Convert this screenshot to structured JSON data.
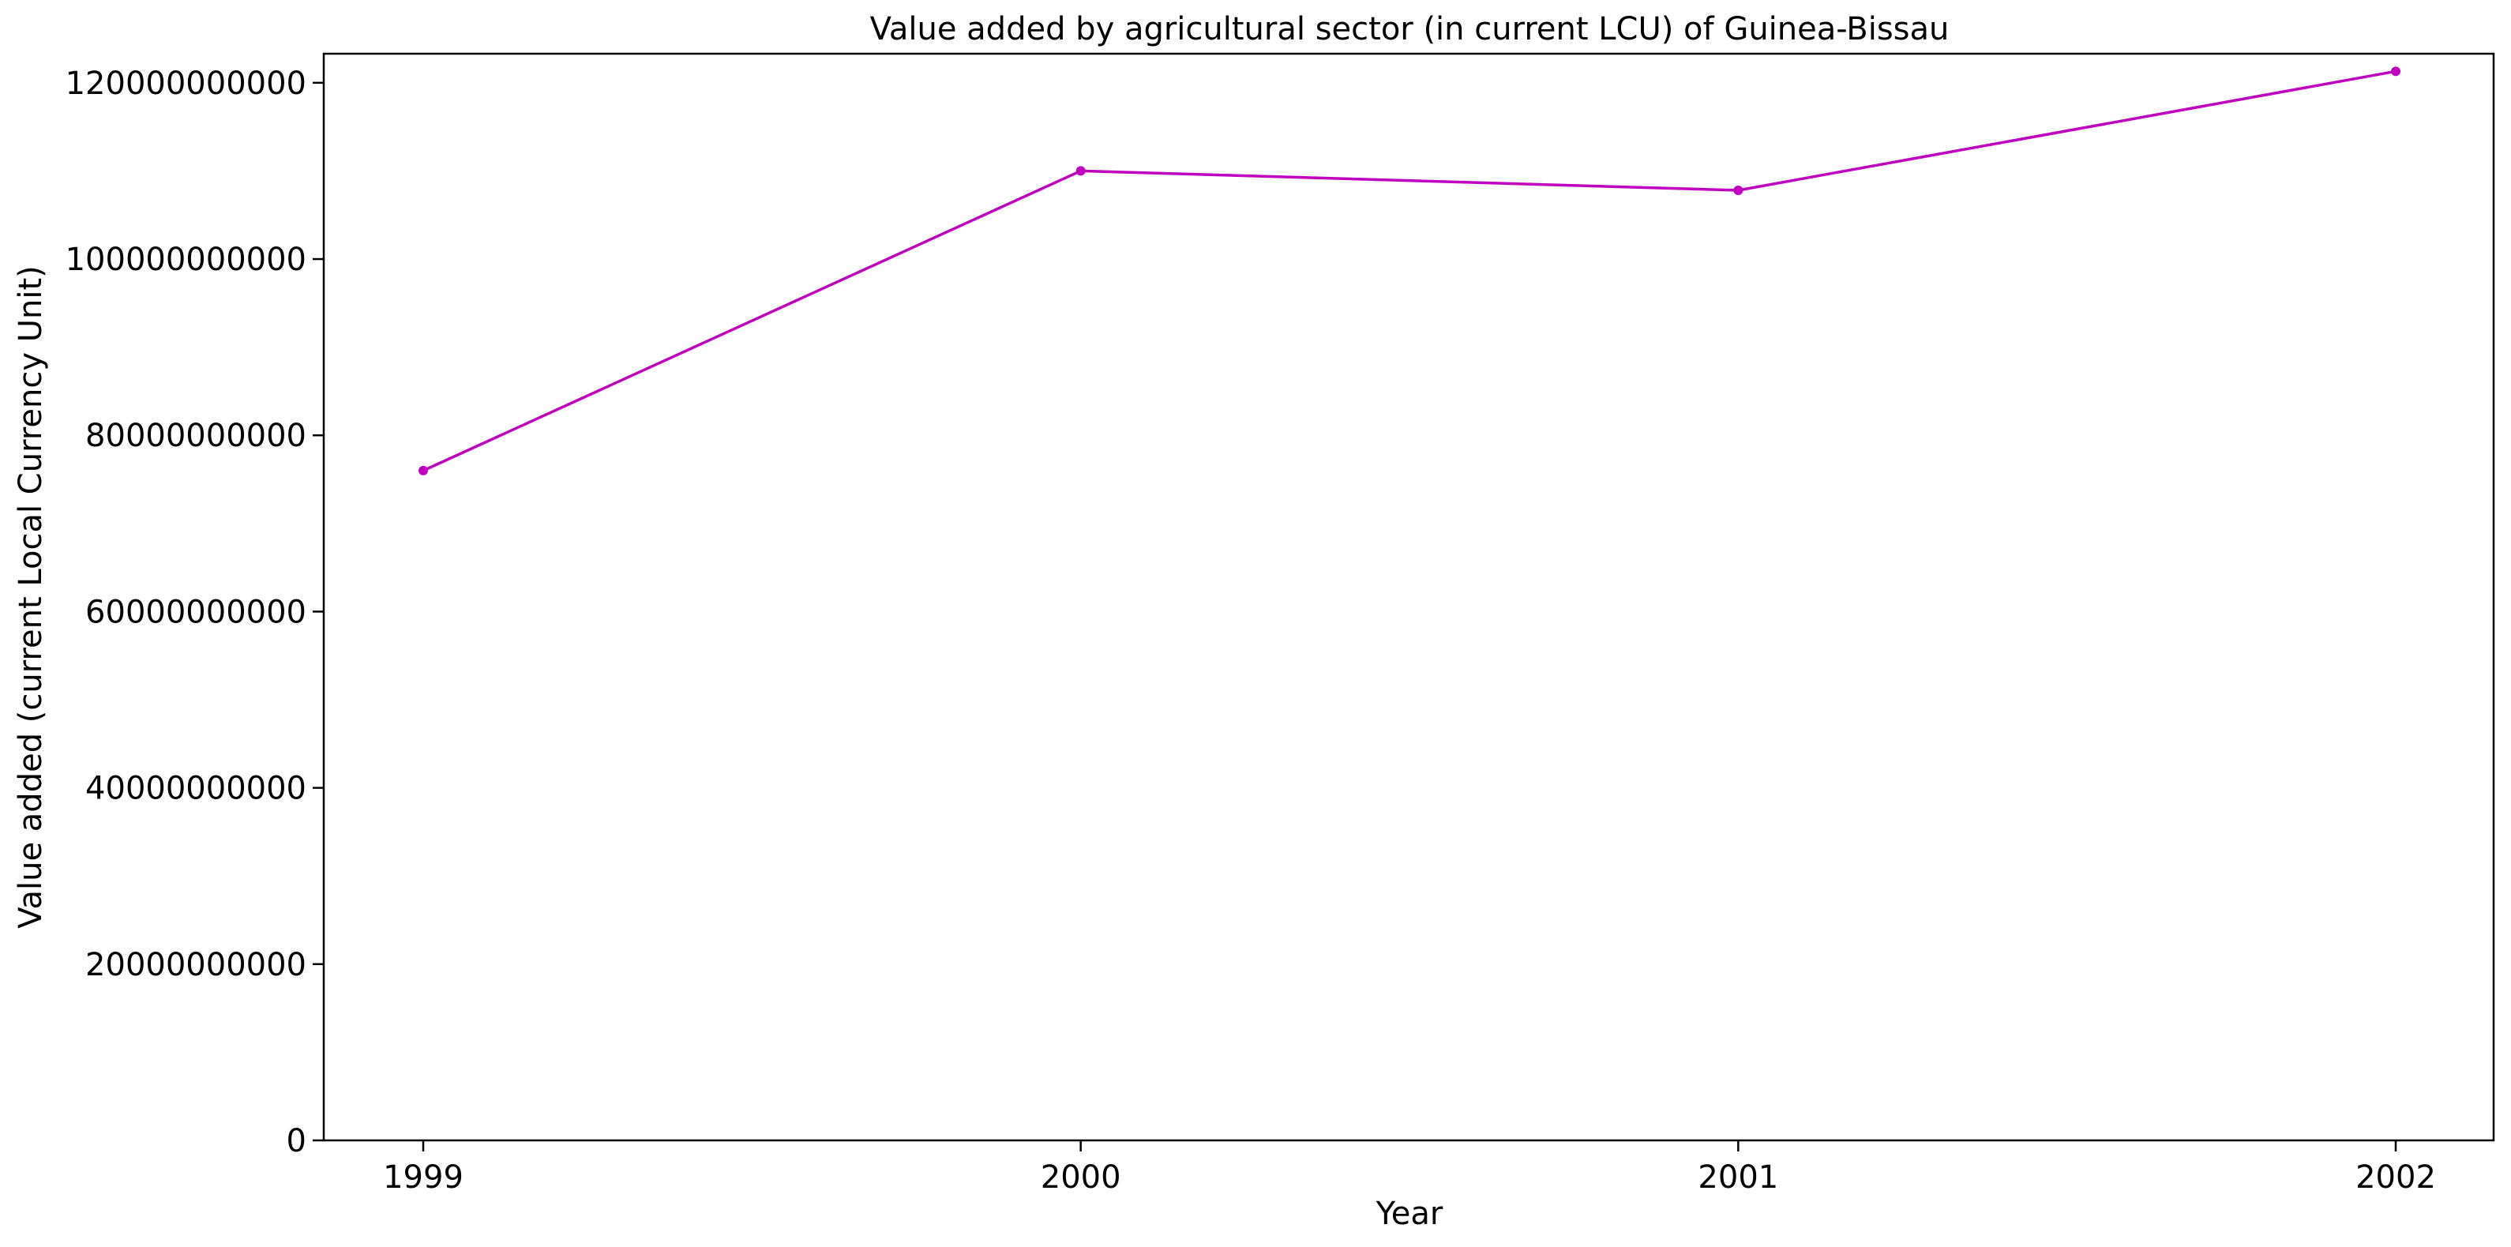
{
  "chart_data": {
    "type": "line",
    "title": "Value added by agricultural sector (in current LCU) of Guinea-Bissau",
    "xlabel": "Year",
    "ylabel": "Value added (current Local Currency Unit)",
    "x": [
      "1999",
      "2000",
      "2001",
      "2002"
    ],
    "series": [
      {
        "values": [
          76000000000,
          110000000000,
          107800000000,
          121300000000
        ],
        "color": "#bf00bf"
      }
    ],
    "y_ticks": [
      0,
      20000000000,
      40000000000,
      60000000000,
      80000000000,
      100000000000,
      120000000000
    ],
    "y_tick_labels": [
      "0",
      "20000000000",
      "40000000000",
      "60000000000",
      "80000000000",
      "100000000000",
      "120000000000"
    ],
    "ylim": [
      0,
      123300000000
    ],
    "grid": false,
    "legend": "none"
  }
}
